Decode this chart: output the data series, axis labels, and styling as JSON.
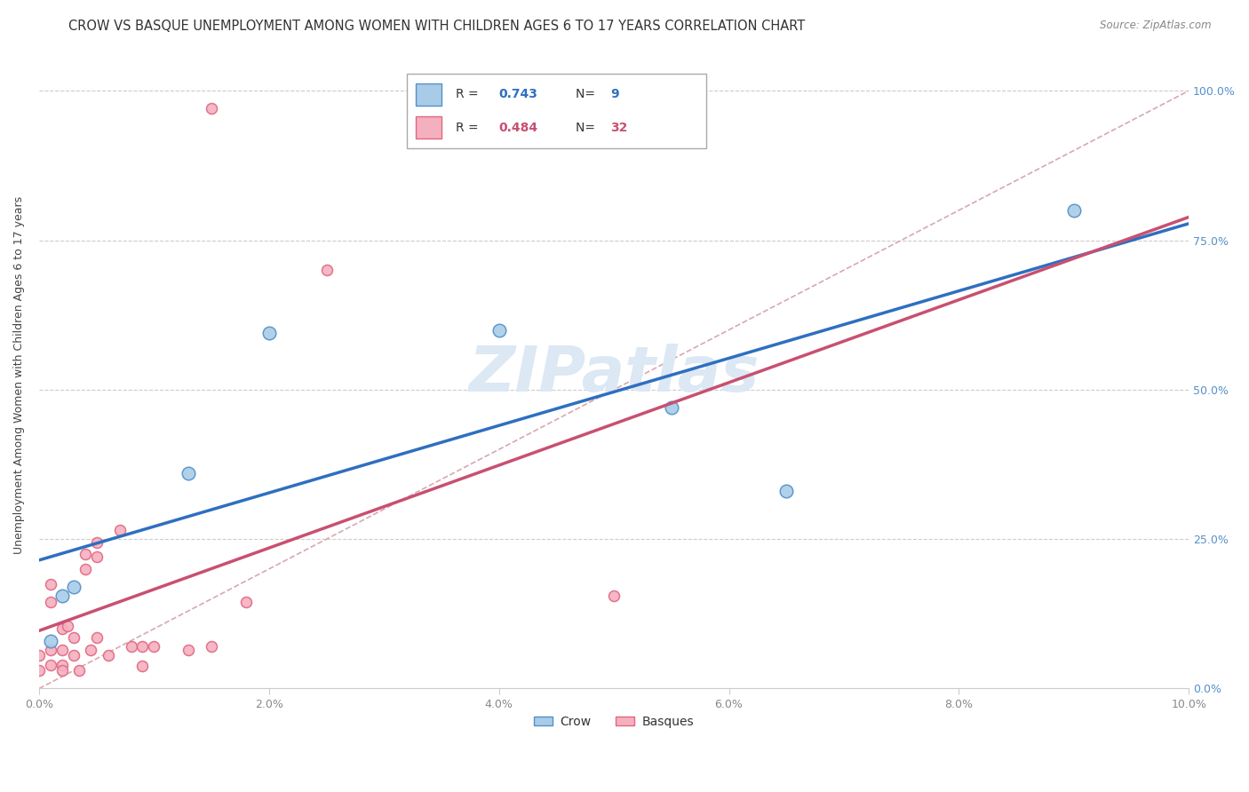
{
  "title": "CROW VS BASQUE UNEMPLOYMENT AMONG WOMEN WITH CHILDREN AGES 6 TO 17 YEARS CORRELATION CHART",
  "source": "Source: ZipAtlas.com",
  "ylabel": "Unemployment Among Women with Children Ages 6 to 17 years",
  "xlim": [
    0.0,
    0.1
  ],
  "ylim": [
    0.0,
    1.05
  ],
  "xticks": [
    0.0,
    0.02,
    0.04,
    0.06,
    0.08,
    0.1
  ],
  "xtick_labels": [
    "0.0%",
    "2.0%",
    "4.0%",
    "6.0%",
    "8.0%",
    "10.0%"
  ],
  "yticks": [
    0.0,
    0.25,
    0.5,
    0.75,
    1.0
  ],
  "ytick_labels": [
    "0.0%",
    "25.0%",
    "50.0%",
    "75.0%",
    "100.0%"
  ],
  "crow_fill_color": "#A8CCE8",
  "crow_edge_color": "#5590C8",
  "basques_fill_color": "#F5B0C0",
  "basques_edge_color": "#E06880",
  "crow_line_color": "#2E6FC0",
  "basques_line_color": "#C85070",
  "diagonal_color": "#D8A8B0",
  "grid_color": "#CCCCCC",
  "watermark_color": "#DCE8F4",
  "right_tick_color": "#5590C8",
  "crow_R": "0.743",
  "crow_N": "9",
  "basques_R": "0.484",
  "basques_N": "32",
  "crow_points": [
    [
      0.001,
      0.08
    ],
    [
      0.002,
      0.155
    ],
    [
      0.003,
      0.17
    ],
    [
      0.013,
      0.36
    ],
    [
      0.02,
      0.595
    ],
    [
      0.04,
      0.6
    ],
    [
      0.055,
      0.47
    ],
    [
      0.065,
      0.33
    ],
    [
      0.09,
      0.8
    ]
  ],
  "basques_points": [
    [
      0.0,
      0.055
    ],
    [
      0.0,
      0.03
    ],
    [
      0.001,
      0.175
    ],
    [
      0.001,
      0.145
    ],
    [
      0.001,
      0.065
    ],
    [
      0.001,
      0.04
    ],
    [
      0.002,
      0.1
    ],
    [
      0.002,
      0.065
    ],
    [
      0.002,
      0.04
    ],
    [
      0.002,
      0.03
    ],
    [
      0.0025,
      0.105
    ],
    [
      0.003,
      0.085
    ],
    [
      0.003,
      0.055
    ],
    [
      0.0035,
      0.03
    ],
    [
      0.004,
      0.225
    ],
    [
      0.004,
      0.2
    ],
    [
      0.0045,
      0.065
    ],
    [
      0.005,
      0.22
    ],
    [
      0.005,
      0.245
    ],
    [
      0.005,
      0.085
    ],
    [
      0.006,
      0.055
    ],
    [
      0.007,
      0.265
    ],
    [
      0.008,
      0.07
    ],
    [
      0.009,
      0.07
    ],
    [
      0.009,
      0.038
    ],
    [
      0.01,
      0.07
    ],
    [
      0.013,
      0.065
    ],
    [
      0.015,
      0.07
    ],
    [
      0.018,
      0.145
    ],
    [
      0.025,
      0.7
    ],
    [
      0.05,
      0.155
    ],
    [
      0.015,
      0.97
    ]
  ],
  "crow_size": 110,
  "basques_size": 75,
  "title_fontsize": 10.5,
  "label_fontsize": 9,
  "tick_fontsize": 9,
  "source_fontsize": 8.5,
  "legend_fontsize": 10,
  "watermark_fontsize": 52
}
